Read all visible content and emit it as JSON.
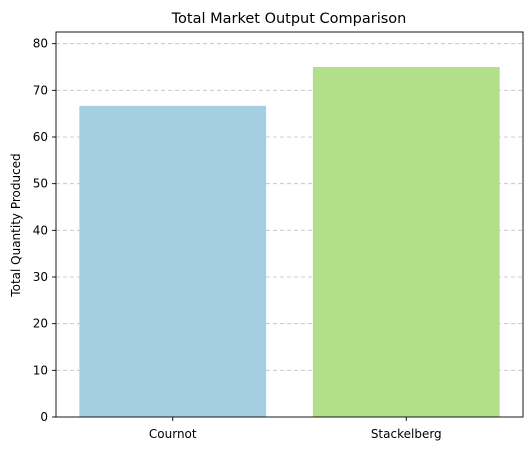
{
  "chart_data": {
    "type": "bar",
    "title": "Total Market Output Comparison",
    "xlabel": "",
    "ylabel": "Total Quantity Produced",
    "categories": [
      "Cournot",
      "Stackelberg"
    ],
    "values": [
      66.67,
      75.0
    ],
    "colors": [
      "#a6cee3",
      "#b2df8a"
    ],
    "ylim": [
      0,
      82.5
    ],
    "yticks": [
      0,
      10,
      20,
      30,
      40,
      50,
      60,
      70,
      80
    ],
    "grid": "y-dashed"
  }
}
